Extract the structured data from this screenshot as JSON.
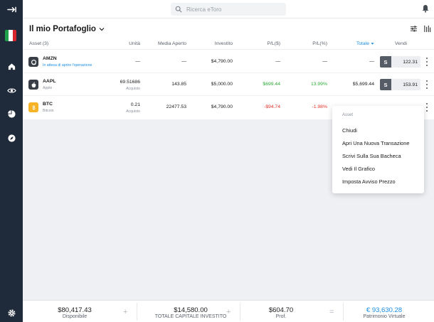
{
  "search": {
    "placeholder": "Ricerca eToro"
  },
  "page": {
    "title": "Il mio Portafoglio"
  },
  "table": {
    "headers": {
      "asset": "Asset (3)",
      "units": "Unità",
      "avg_open": "Media Aperto",
      "invested": "Investito",
      "pl": "P/L($)",
      "pl_pct": "P/L(%)",
      "total": "Totale",
      "sell": "Vendi"
    },
    "rows": [
      {
        "ticker": "AMZN",
        "name": "In attesa di aprire l'operazione",
        "units": "—",
        "units_sub": "",
        "avg_open": "—",
        "invested": "$4,790.00",
        "pl": "—",
        "pl_pct": "—",
        "total": "—",
        "sell_label": "S",
        "sell_price": "122.31",
        "logo": "amazon-logo"
      },
      {
        "ticker": "AAPL",
        "name": "Apple",
        "units": "69.51686",
        "units_sub": "Acquisto",
        "avg_open": "143.85",
        "invested": "$5,000.00",
        "pl": "$699.44",
        "pl_pct": "13.99%",
        "total": "$5,699.44",
        "sell_label": "S",
        "sell_price": "153.91",
        "logo": "apple-logo"
      },
      {
        "ticker": "BTC",
        "name": "Bitcoin",
        "units": "0.21",
        "units_sub": "Acquisto",
        "avg_open": "22477.53",
        "invested": "$4,790.00",
        "pl": "-$94.74",
        "pl_pct": "-1.98%",
        "total": "",
        "sell_label": "",
        "sell_price": "",
        "logo": "bitcoin-logo"
      }
    ]
  },
  "menu": {
    "header": "Asset",
    "items": [
      "Chiudi",
      "Apri Una Nuova Transazione",
      "Scrivi Sulla Sua Bacheca",
      "Vedi Il Grafico",
      "Imposta Avviso Prezzo"
    ]
  },
  "footer": {
    "available_value": "$80,417.43",
    "available_label": "Disponibile",
    "invested_value": "$14,580.00",
    "invested_label": "TOTALE CAPITALE INVESTITO",
    "profit_value": "$604.70",
    "profit_label": "Prof.",
    "virtual_value": "€ 93,630.28",
    "virtual_label": "Patrimonio Virtuale",
    "op_plus": "+",
    "op_equals": "="
  },
  "colors": {
    "sidebar": "#1f2a3a",
    "positive": "#2eaa3a",
    "negative": "#e0322a",
    "link": "#1b8de0",
    "sell_button": "#565c66"
  },
  "icons": {
    "sidebar": [
      "collapse-arrow-icon",
      "italy-flag-icon",
      "home-icon",
      "watchlist-eye-icon",
      "portfolio-pie-icon",
      "discover-compass-icon",
      "settings-gear-icon"
    ],
    "topbar": [
      "search-icon",
      "bell-icon"
    ],
    "toolbar": [
      "filter-sliders-icon",
      "chart-settings-icon"
    ]
  }
}
